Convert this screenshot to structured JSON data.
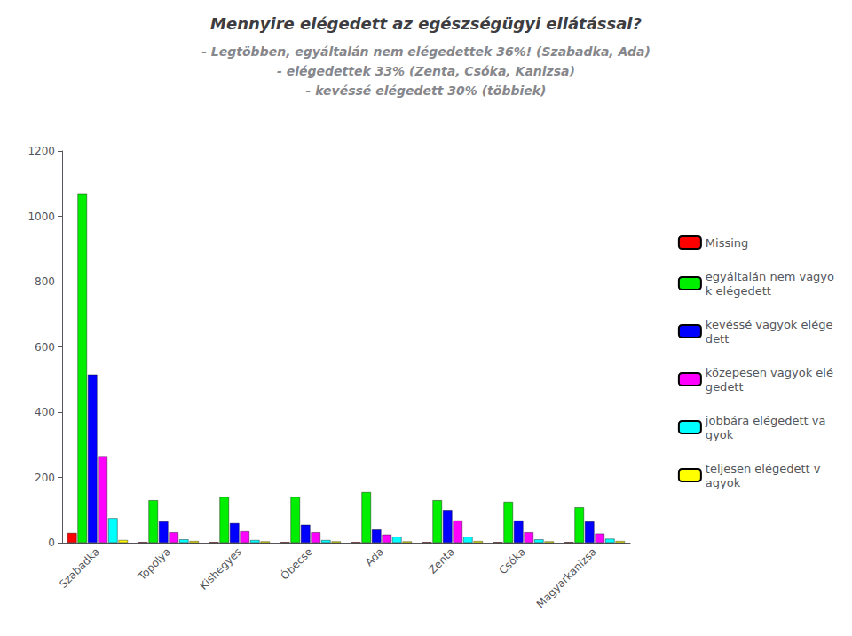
{
  "chart_data": {
    "type": "bar",
    "title": "Mennyire elégedett az egészségügyi ellátással?",
    "subtitle": "- Legtöbben, egyáltalán nem elégedettek 36%! (Szabadka, Ada)\n- elégedettek 33% (Zenta, Csóka, Kanizsa)\n- kevéssé elégedett 30% (többiek)",
    "categories": [
      "Szabadka",
      "Topolya",
      "Kishegyes",
      "Óbecse",
      "Ada",
      "Zenta",
      "Csóka",
      "Magyarkanizsa"
    ],
    "series": [
      {
        "name": "Missing",
        "color": "#ff0000",
        "values": [
          30,
          2,
          2,
          2,
          2,
          2,
          2,
          2
        ]
      },
      {
        "name": "egyáltalán nem vagyo\nk elégedett",
        "color": "#00ee00",
        "values": [
          1070,
          130,
          140,
          140,
          155,
          130,
          125,
          108
        ]
      },
      {
        "name": "kevéssé vagyok elége\ndett",
        "color": "#0000ff",
        "values": [
          515,
          65,
          60,
          55,
          40,
          100,
          68,
          65
        ]
      },
      {
        "name": "közepesen vagyok elé\ngedett",
        "color": "#ff00ff",
        "values": [
          265,
          32,
          35,
          32,
          25,
          68,
          32,
          28
        ]
      },
      {
        "name": "jobbára elégedett va\ngyok",
        "color": "#00ffff",
        "values": [
          75,
          10,
          8,
          8,
          18,
          18,
          10,
          12
        ]
      },
      {
        "name": "teljesen elégedett v\nagyok",
        "color": "#ffff00",
        "values": [
          8,
          5,
          4,
          4,
          4,
          5,
          4,
          5
        ]
      }
    ],
    "ylim": [
      0,
      1200
    ],
    "yticks": [
      0,
      200,
      400,
      600,
      800,
      1000,
      1200
    ],
    "grid": false,
    "legend": "right"
  }
}
